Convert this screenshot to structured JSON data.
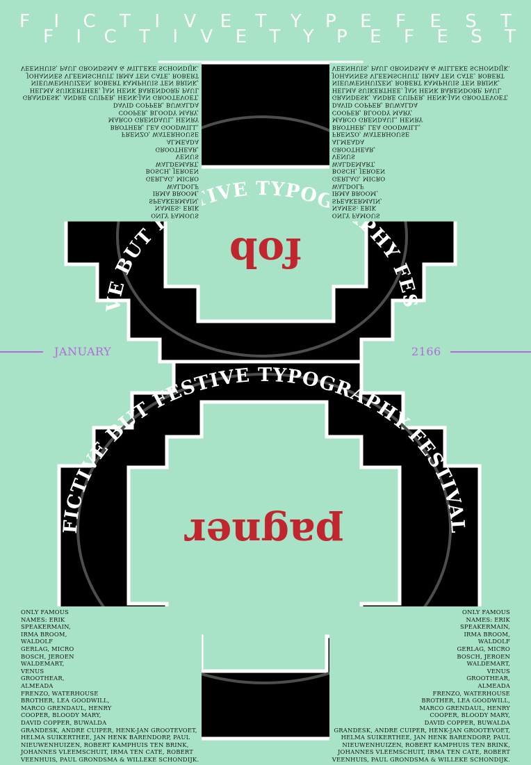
{
  "title_row_1": [
    "F",
    "I",
    "C",
    "T",
    "I",
    "V",
    "E",
    "T",
    "Y",
    "P",
    "E",
    "F",
    "E",
    "S",
    "T"
  ],
  "title_row_2": [
    "F",
    "I",
    "C",
    "T",
    "I",
    "V",
    "E",
    "T",
    "Y",
    "P",
    "E",
    "F",
    "E",
    "S",
    "T"
  ],
  "arc_text": "FICTIVE BUT FESTIVE TYPOGRAPHY FESTIVAL",
  "upper_word": "fob",
  "lower_word": "pagner",
  "month": "JANUARY",
  "year": "2166",
  "names_lines": [
    "ONLY FAMOUS",
    "NAMES: ERIK",
    "SPEAKERMAIN,",
    "IRMA BROOM,",
    "WALDOLF",
    "GERLAG, MICRO",
    "BOSCH, JEROEN",
    "WALDEMART,",
    "VENUS",
    "GROOTHEAR,",
    "ALMEADA",
    "FRENZO, WATERHOUSE",
    "BROTHER, LEA GOODWILL,",
    "MARCO GRENDAUL, HENRY",
    "COOPER, BLOODY MARY,",
    "DAVID COPPER, BUWALDA",
    "GRANDESK, ANDRE CUIPER, HENK-JAN GROOTEVOET,",
    "HELMA SUIKERTHEE, JAN HENK BARENDORP, PAUL",
    "NIEUWENHUIZEN, ROBERT KAMPHUIS TEN BRINK,",
    "JOHANNES VLEEMSCHUIT, IRMA TEN CATE, ROBERT",
    "VEENHUIS, PAUL GRONDSMA & WILLEKE SCHONDIJK."
  ],
  "colors": {
    "background": "#a8e3c8",
    "figure": "#000000",
    "outline": "#ffffff",
    "word": "#c0262d",
    "date": "#b26ad9",
    "ring": "#4a4f4c"
  }
}
